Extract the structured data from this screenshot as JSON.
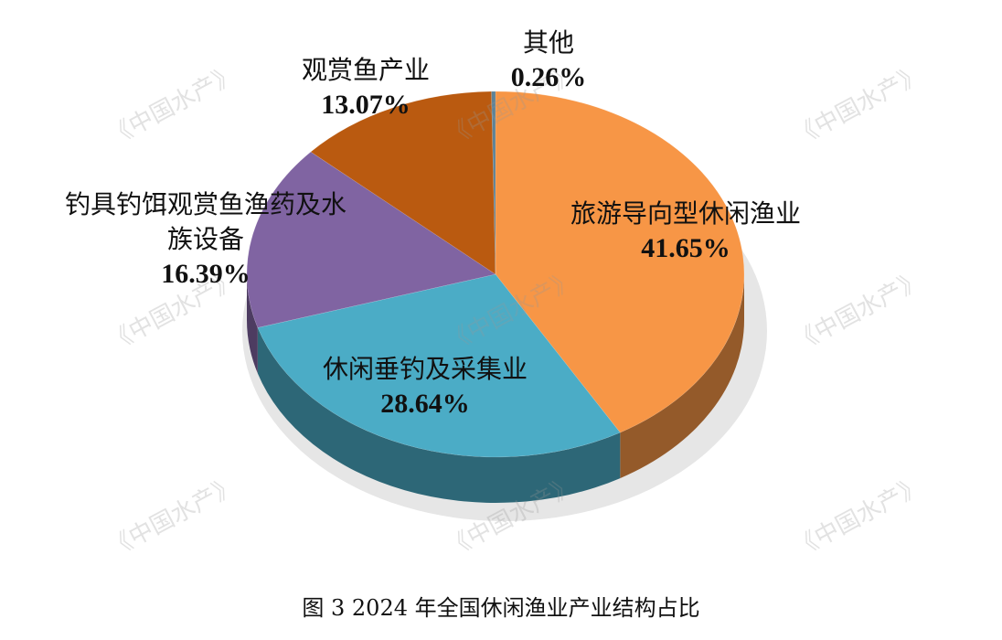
{
  "chart_data": {
    "type": "pie",
    "caption": "图 3 2024 年全国休闲渔业产业结构占比",
    "watermark": "《中国水产》",
    "categories": [
      "旅游导向型休闲渔业",
      "休闲垂钓及采集业",
      "钓具钓饵观赏鱼渔药及水族设备",
      "观赏鱼产业",
      "其他"
    ],
    "values": [
      41.65,
      28.64,
      16.39,
      13.07,
      0.26
    ],
    "value_labels": [
      "41.65%",
      "28.64%",
      "16.39%",
      "13.07%",
      "0.26%"
    ],
    "colors": [
      "#F79646",
      "#4BACC6",
      "#8064A2",
      "#BA5A10",
      "#5E8296"
    ]
  }
}
